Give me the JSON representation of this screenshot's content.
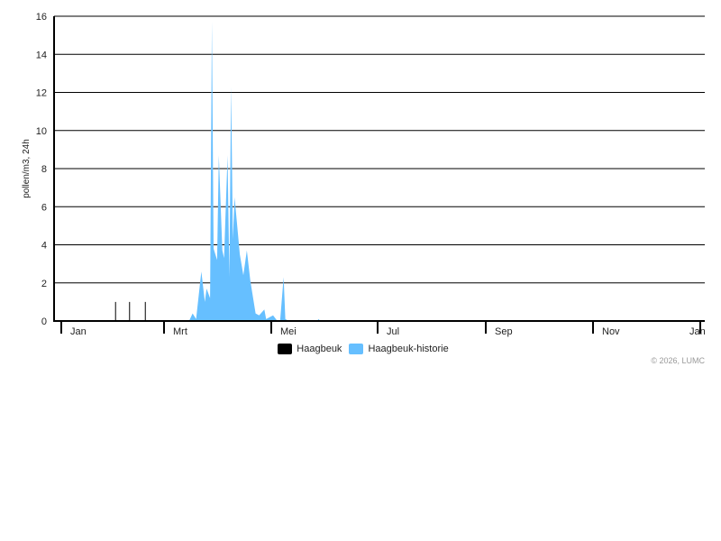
{
  "chart_data": {
    "type": "area",
    "ylabel": "pollen/m3, 24h",
    "ylim": [
      0,
      16
    ],
    "yticks": [
      0,
      2,
      4,
      6,
      8,
      10,
      12,
      14,
      16
    ],
    "grid": true,
    "xticks": [
      "Jan",
      "Mrt",
      "Mei",
      "Jul",
      "Sep",
      "Nov",
      "Jan"
    ],
    "legend_position": "bottom",
    "series": [
      {
        "name": "Haagbeuk",
        "style": "bar",
        "color": "#000000",
        "points": [
          [
            "02-01",
            1
          ],
          [
            "02-09",
            1
          ],
          [
            "02-18",
            1
          ]
        ]
      },
      {
        "name": "Haagbeuk-historie",
        "style": "area",
        "color": "#66bfff",
        "points": [
          [
            "03-15",
            0
          ],
          [
            "03-17",
            0.4
          ],
          [
            "03-19",
            0.1
          ],
          [
            "03-22",
            2.6
          ],
          [
            "03-24",
            1.0
          ],
          [
            "03-25",
            1.7
          ],
          [
            "03-27",
            1.2
          ],
          [
            "03-28",
            15.7
          ],
          [
            "03-29",
            3.8
          ],
          [
            "03-31",
            3.2
          ],
          [
            "04-01",
            8.7
          ],
          [
            "04-03",
            3.7
          ],
          [
            "04-04",
            3.3
          ],
          [
            "04-06",
            8.7
          ],
          [
            "04-07",
            2.3
          ],
          [
            "04-08",
            12.3
          ],
          [
            "04-09",
            4.3
          ],
          [
            "04-10",
            6.5
          ],
          [
            "04-13",
            3.5
          ],
          [
            "04-15",
            2.4
          ],
          [
            "04-17",
            3.7
          ],
          [
            "04-19",
            2.1
          ],
          [
            "04-22",
            0.4
          ],
          [
            "04-24",
            0.3
          ],
          [
            "04-27",
            0.6
          ],
          [
            "04-28",
            0.1
          ],
          [
            "05-02",
            0.3
          ],
          [
            "05-04",
            0.05
          ],
          [
            "05-06",
            0
          ],
          [
            "05-08",
            2.3
          ],
          [
            "05-09",
            0.1
          ],
          [
            "05-11",
            0
          ],
          [
            "05-27",
            0
          ],
          [
            "05-28",
            0.1
          ],
          [
            "05-29",
            0
          ]
        ]
      }
    ]
  },
  "footer": {
    "copyright": "© 2026, LUMC"
  }
}
